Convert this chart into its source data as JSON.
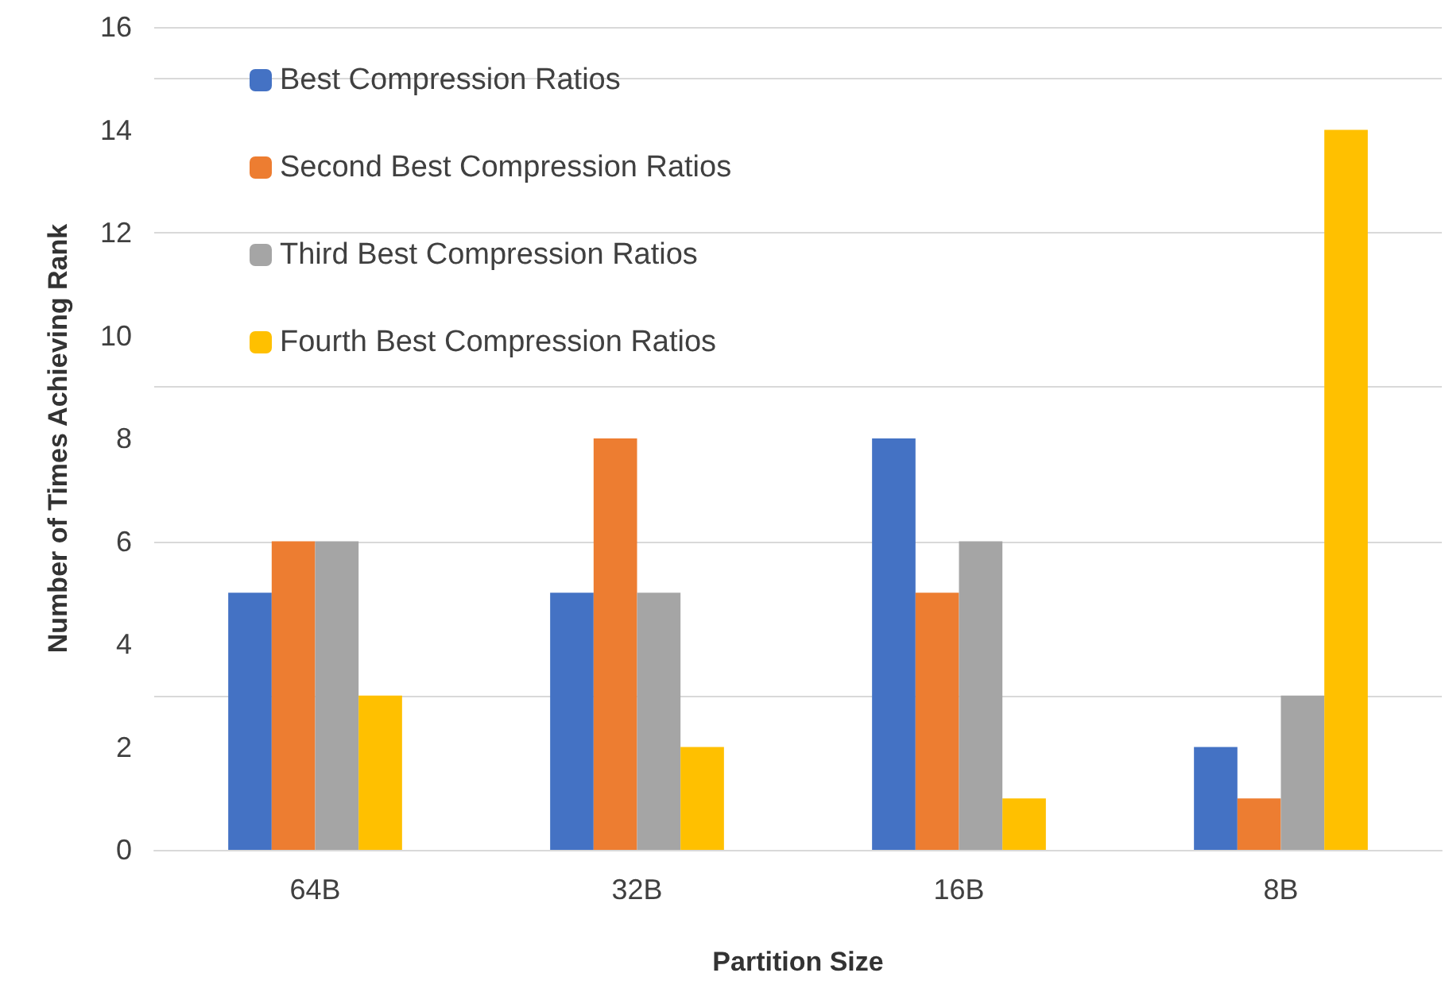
{
  "chart_data": {
    "type": "bar",
    "xlabel": "Partition Size",
    "ylabel": "Number of Times Achieving Rank",
    "categories": [
      "64B",
      "32B",
      "16B",
      "8B"
    ],
    "series": [
      {
        "name": "Best Compression Ratios",
        "color": "#4472c4",
        "values": [
          5,
          5,
          8,
          2
        ]
      },
      {
        "name": "Second Best Compression Ratios",
        "color": "#ed7d31",
        "values": [
          6,
          8,
          5,
          1
        ]
      },
      {
        "name": "Third Best Compression Ratios",
        "color": "#a5a5a5",
        "values": [
          6,
          5,
          6,
          3
        ]
      },
      {
        "name": "Fourth Best Compression Ratios",
        "color": "#ffc000",
        "values": [
          3,
          2,
          1,
          14
        ]
      }
    ],
    "ylim": [
      0,
      16
    ],
    "yticks": [
      0,
      2,
      4,
      6,
      8,
      10,
      12,
      14,
      16
    ],
    "grid": "y",
    "legend": "top left"
  }
}
